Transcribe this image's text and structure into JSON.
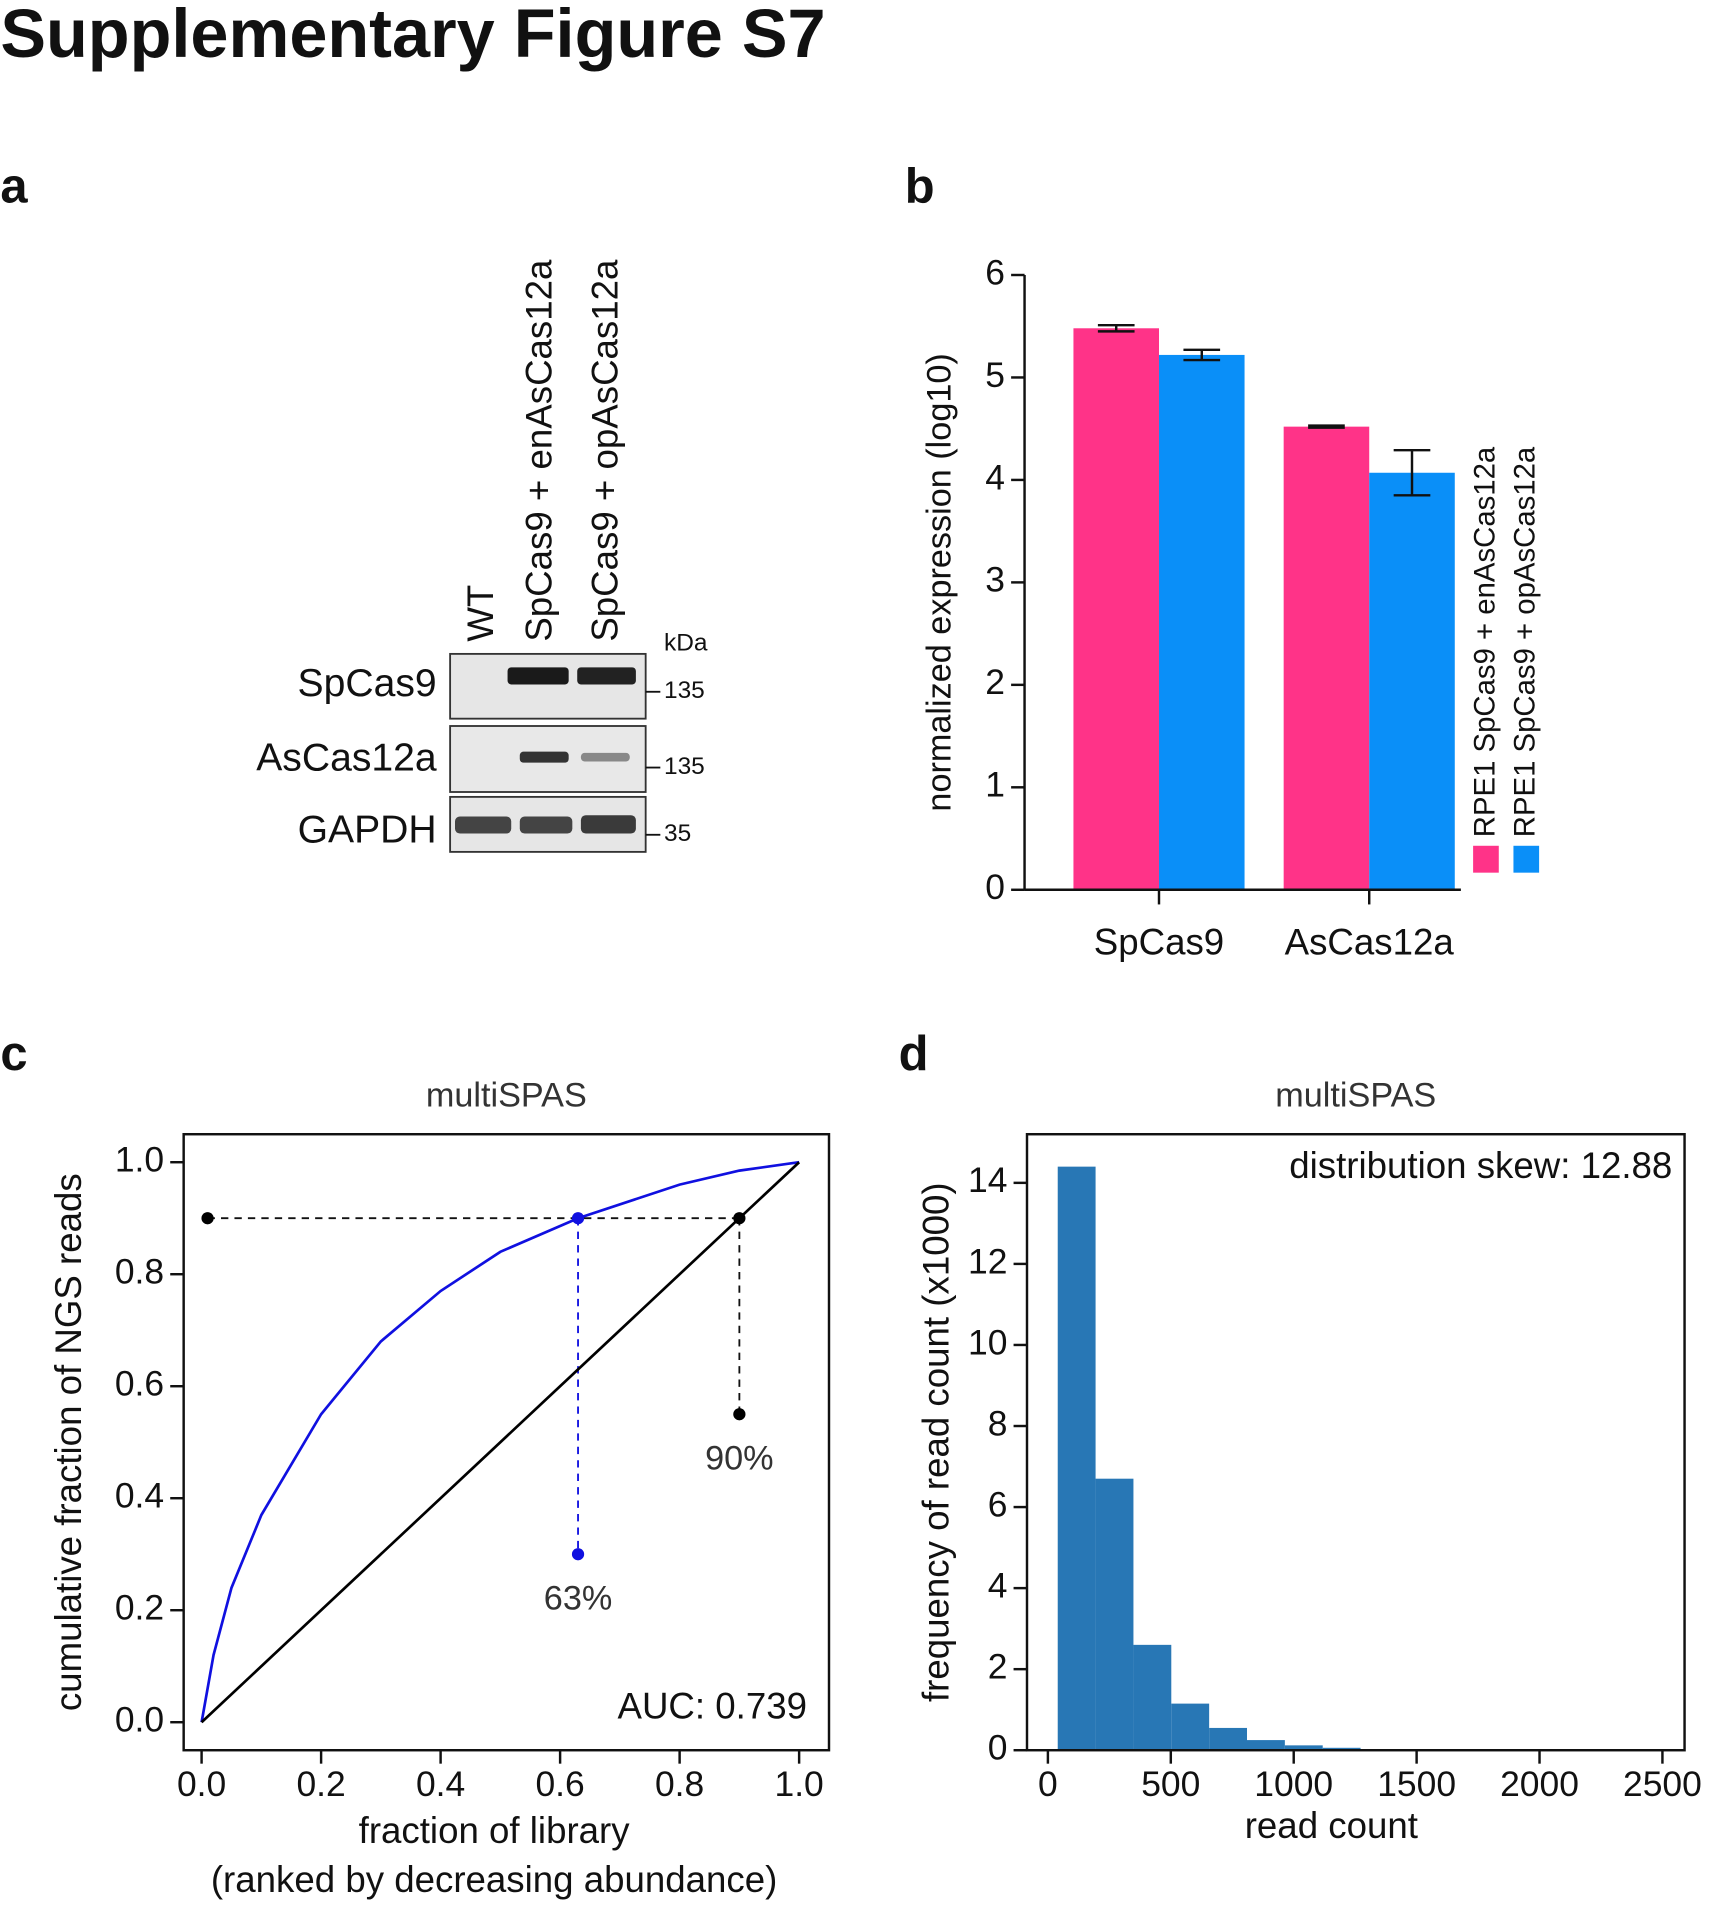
{
  "title": "Supplementary Figure S7",
  "panels": [
    "a",
    "b",
    "c",
    "d"
  ],
  "panel_a": {
    "lanes": [
      "WT",
      "SpCas9 + enAsCas12a",
      "SpCas9 + opAsCas12a"
    ],
    "unit": "kDa",
    "blots": [
      {
        "label": "SpCas9",
        "marker": "135"
      },
      {
        "label": "AsCas12a",
        "marker": "135"
      },
      {
        "label": "GAPDH",
        "marker": "35"
      }
    ]
  },
  "chart_data": [
    {
      "type": "bar",
      "y_label": "normalized expression (log10)",
      "categories": [
        "SpCas9",
        "AsCas12a"
      ],
      "series": [
        {
          "name": "RPE1 SpCas9 + enAsCas12a",
          "color": "#ff3388",
          "values": [
            5.48,
            4.52
          ],
          "errors": [
            0.03,
            0.01
          ]
        },
        {
          "name": "RPE1 SpCas9 + opAsCas12a",
          "color": "#0a8ff8",
          "values": [
            5.22,
            4.07
          ],
          "errors": [
            0.05,
            0.22
          ]
        }
      ],
      "ylim": [
        0,
        6
      ],
      "yticks": [
        0,
        1,
        2,
        3,
        4,
        5,
        6
      ]
    },
    {
      "type": "line",
      "title": "multiSPAS",
      "x_label": [
        "fraction of library",
        "(ranked by decreasing abundance)"
      ],
      "y_label": "cumulative fraction of NGS reads",
      "series": [
        {
          "color": "#1010e0",
          "x": [
            0,
            0.02,
            0.05,
            0.1,
            0.2,
            0.3,
            0.4,
            0.5,
            0.63,
            0.8,
            0.9,
            1.0
          ],
          "values": [
            0,
            0.12,
            0.24,
            0.37,
            0.55,
            0.68,
            0.77,
            0.84,
            0.9,
            0.96,
            0.985,
            1.0
          ]
        },
        {
          "color": "#000000",
          "x": [
            0,
            1
          ],
          "values": [
            0,
            1
          ]
        }
      ],
      "markers": [
        {
          "x": 0.01,
          "y": 0.9,
          "color": "#000000"
        },
        {
          "x": 0.63,
          "y": 0.9,
          "color": "#1010e0"
        },
        {
          "x": 0.9,
          "y": 0.9,
          "color": "#000000"
        },
        {
          "x": 0.63,
          "y": 0.3,
          "color": "#1010e0"
        },
        {
          "x": 0.9,
          "y": 0.55,
          "color": "#000000"
        }
      ],
      "annotations": [
        "63%",
        "90%",
        "AUC: 0.739"
      ],
      "xlim": [
        -0.03,
        1.05
      ],
      "ylim": [
        -0.05,
        1.05
      ],
      "xticks": [
        {
          "value": 0,
          "label": "0.0"
        },
        0.2,
        0.4,
        0.6,
        0.8,
        {
          "value": 1,
          "label": "1.0"
        }
      ],
      "yticks": [
        {
          "value": 0,
          "label": "0.0"
        },
        0.2,
        0.4,
        0.6,
        0.8,
        {
          "value": 1,
          "label": "1.0"
        }
      ]
    },
    {
      "type": "histogram",
      "title": "multiSPAS",
      "x_label": "read count",
      "y_label": "frequency of read count (x1000)",
      "bins": [
        40,
        194,
        348,
        502,
        656,
        810,
        964,
        1118,
        1272,
        1426,
        1580,
        1734,
        1888,
        2042,
        2196,
        2350,
        2504
      ],
      "values": [
        14.4,
        6.7,
        2.6,
        1.15,
        0.55,
        0.25,
        0.12,
        0.06,
        0.03,
        0.02,
        0.01,
        0.01,
        0.005,
        0.005,
        0.003,
        0.002
      ],
      "color": "#2877b5",
      "annotations": [
        "distribution skew: 12.88"
      ],
      "xlim": [
        -85,
        2590
      ],
      "ylim": [
        0,
        15.2
      ],
      "xticks": [
        0,
        500,
        1000,
        1500,
        2000,
        2500
      ],
      "yticks": [
        0,
        2,
        4,
        6,
        8,
        10,
        12,
        14
      ]
    }
  ]
}
